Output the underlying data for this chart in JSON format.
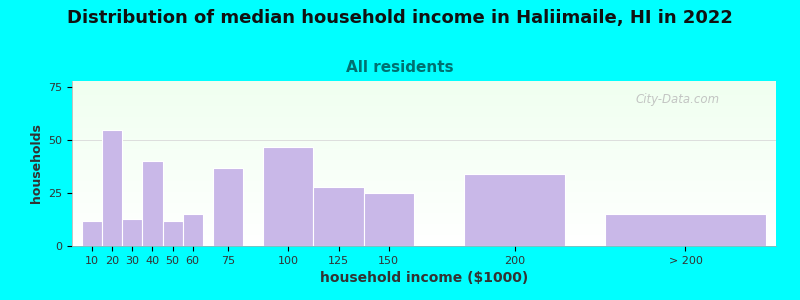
{
  "title": "Distribution of median household income in Haliimaile, HI in 2022",
  "subtitle": "All residents",
  "xlabel": "household income ($1000)",
  "ylabel": "households",
  "bar_labels": [
    "10",
    "20",
    "30",
    "40",
    "50",
    "60",
    "75",
    "100",
    "125",
    "150",
    "200",
    "> 200"
  ],
  "bar_heights": [
    12,
    55,
    13,
    40,
    12,
    15,
    37,
    47,
    28,
    25,
    34,
    15
  ],
  "bar_color": "#c9b8e8",
  "bar_edgecolor": "#ffffff",
  "ylim": [
    0,
    78
  ],
  "yticks": [
    0,
    25,
    50,
    75
  ],
  "bg_color": "#00ffff",
  "title_fontsize": 13,
  "subtitle_fontsize": 11,
  "subtitle_color": "#007070",
  "watermark": "City-Data.com",
  "bar_widths": [
    10,
    10,
    10,
    10,
    10,
    10,
    15,
    25,
    25,
    25,
    50,
    80
  ],
  "bar_lefts": [
    10,
    20,
    30,
    40,
    50,
    60,
    75,
    100,
    125,
    150,
    200,
    270
  ],
  "xlim": [
    5,
    355
  ]
}
